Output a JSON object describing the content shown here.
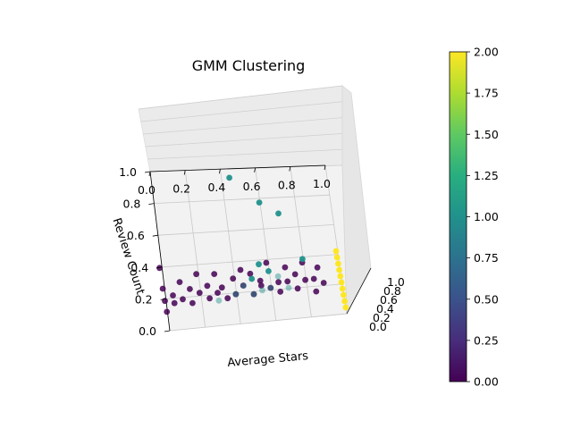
{
  "chart_data": {
    "type": "scatter",
    "projection": "3d",
    "title": "GMM Clustering",
    "xlabel": "Average Stars",
    "ylabel": "Review Count",
    "zlabel": "",
    "xticks": [
      "0.0",
      "0.2",
      "0.4",
      "0.6",
      "0.8",
      "1.0"
    ],
    "yticks": [
      "0.0",
      "0.2",
      "0.4",
      "0.6",
      "0.8",
      "1.0"
    ],
    "zticks": [
      "0.0",
      "0.2",
      "0.4",
      "0.6",
      "0.8",
      "1.0"
    ],
    "xlim": [
      0,
      1
    ],
    "ylim": [
      0,
      1
    ],
    "zlim": [
      0,
      1
    ],
    "grid": true,
    "colormap": "viridis",
    "colorbar": {
      "min": 0.0,
      "max": 2.0,
      "ticks": [
        "0.00",
        "0.25",
        "0.50",
        "0.75",
        "1.00",
        "1.25",
        "1.50",
        "1.75",
        "2.00"
      ]
    },
    "series": [
      {
        "cluster": 0,
        "color": "#440154",
        "points": [
          [
            0.0,
            0.02,
            0.62
          ],
          [
            0.0,
            0.03,
            0.4
          ],
          [
            0.0,
            0.04,
            0.2
          ],
          [
            0.0,
            0.06,
            0.85
          ],
          [
            0.05,
            0.02,
            0.5
          ],
          [
            0.05,
            0.05,
            0.3
          ],
          [
            0.1,
            0.02,
            0.7
          ],
          [
            0.1,
            0.05,
            0.35
          ],
          [
            0.15,
            0.03,
            0.55
          ],
          [
            0.15,
            0.06,
            0.25
          ],
          [
            0.2,
            0.02,
            0.8
          ],
          [
            0.2,
            0.04,
            0.45
          ],
          [
            0.25,
            0.02,
            0.6
          ],
          [
            0.25,
            0.06,
            0.3
          ],
          [
            0.3,
            0.03,
            0.75
          ],
          [
            0.3,
            0.05,
            0.4
          ],
          [
            0.33,
            0.02,
            0.55
          ],
          [
            0.35,
            0.07,
            0.25
          ],
          [
            0.4,
            0.03,
            0.65
          ],
          [
            0.4,
            0.05,
            0.35
          ],
          [
            0.45,
            0.02,
            0.8
          ],
          [
            0.45,
            0.04,
            0.5
          ],
          [
            0.5,
            0.03,
            0.7
          ],
          [
            0.5,
            0.06,
            0.3
          ],
          [
            0.55,
            0.02,
            0.6
          ],
          [
            0.55,
            0.05,
            0.45
          ],
          [
            0.6,
            0.03,
            0.85
          ],
          [
            0.6,
            0.05,
            0.4
          ],
          [
            0.65,
            0.02,
            0.55
          ],
          [
            0.65,
            0.06,
            0.3
          ],
          [
            0.7,
            0.03,
            0.75
          ],
          [
            0.7,
            0.04,
            0.5
          ],
          [
            0.75,
            0.02,
            0.65
          ],
          [
            0.75,
            0.05,
            0.35
          ],
          [
            0.8,
            0.03,
            0.8
          ],
          [
            0.8,
            0.06,
            0.45
          ],
          [
            0.85,
            0.02,
            0.55
          ],
          [
            0.85,
            0.04,
            0.3
          ],
          [
            0.88,
            0.03,
            0.7
          ],
          [
            0.9,
            0.05,
            0.4
          ]
        ]
      },
      {
        "cluster": 1,
        "color": "#21918c",
        "points": [
          [
            0.3,
            0.04,
            0.3
          ],
          [
            0.4,
            0.05,
            0.35
          ],
          [
            0.5,
            0.06,
            0.3
          ],
          [
            0.6,
            0.05,
            0.4
          ],
          [
            0.7,
            0.06,
            0.35
          ],
          [
            0.55,
            0.08,
            0.3
          ],
          [
            0.45,
            0.1,
            0.35
          ],
          [
            0.65,
            0.12,
            0.4
          ],
          [
            0.5,
            0.16,
            0.3
          ],
          [
            0.6,
            0.18,
            0.35
          ],
          [
            0.8,
            0.22,
            0.4
          ],
          [
            0.55,
            0.25,
            0.3
          ],
          [
            0.7,
            0.55,
            0.35
          ],
          [
            0.6,
            0.65,
            0.3
          ],
          [
            0.45,
            0.8,
            0.35
          ]
        ]
      },
      {
        "cluster": 2,
        "color": "#fde725",
        "points": [
          [
            1.0,
            0.0,
            0.1
          ],
          [
            1.0,
            0.0,
            0.2
          ],
          [
            1.0,
            0.0,
            0.3
          ],
          [
            1.0,
            0.0,
            0.4
          ],
          [
            1.0,
            0.0,
            0.5
          ],
          [
            1.0,
            0.0,
            0.6
          ],
          [
            1.0,
            0.0,
            0.7
          ],
          [
            1.0,
            0.0,
            0.8
          ],
          [
            1.0,
            0.0,
            0.9
          ],
          [
            1.0,
            0.0,
            1.0
          ]
        ]
      }
    ]
  }
}
